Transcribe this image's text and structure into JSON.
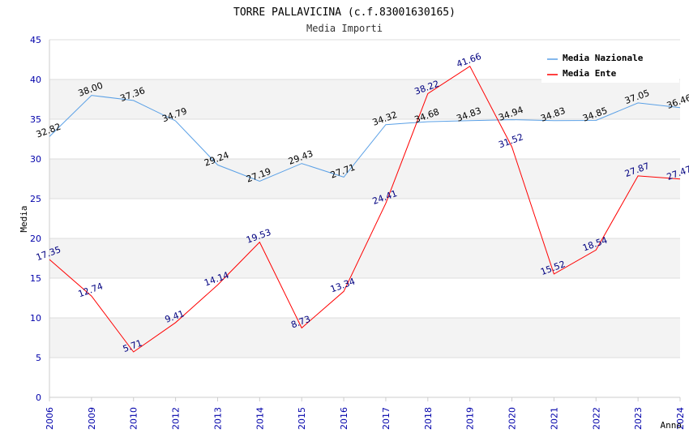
{
  "chart_data": {
    "type": "line",
    "title": "TORRE PALLAVICINA (c.f.83001630165)",
    "subtitle": "Media Importi",
    "ylabel": "Media",
    "xlabel": "Anno",
    "ylim": [
      0,
      45
    ],
    "yticks": [
      0,
      5,
      10,
      15,
      20,
      25,
      30,
      35,
      40,
      45
    ],
    "categories": [
      "2006",
      "2009",
      "2010",
      "2012",
      "2013",
      "2014",
      "2015",
      "2016",
      "2017",
      "2018",
      "2019",
      "2020",
      "2021",
      "2022",
      "2023",
      "2024"
    ],
    "series": [
      {
        "name": "Media Nazionale",
        "color": "#5aa0e6",
        "values": [
          32.82,
          38.0,
          37.36,
          34.79,
          29.24,
          27.19,
          29.43,
          27.71,
          34.32,
          34.68,
          34.83,
          34.94,
          34.83,
          34.85,
          37.05,
          36.46
        ],
        "labels": [
          "32.82",
          "38.00",
          "37.36",
          "34.79",
          "29.24",
          "27.19",
          "29.43",
          "27.71",
          "34.32",
          "34.68",
          "34.83",
          "34.94",
          "34.83",
          "34.85",
          "37.05",
          "36.46"
        ]
      },
      {
        "name": "Media Ente",
        "color": "#ff0000",
        "values": [
          17.35,
          12.74,
          5.71,
          9.41,
          14.14,
          19.53,
          8.73,
          13.34,
          24.41,
          38.22,
          41.66,
          31.52,
          15.52,
          18.54,
          27.87,
          27.47
        ],
        "labels": [
          "17.35",
          "12.74",
          "5.71",
          "9.41",
          "14.14",
          "19.53",
          "8.73",
          "13.34",
          "24.41",
          "38.22",
          "41.66",
          "31.52",
          "15.52",
          "18.54",
          "27.87",
          "27.47"
        ]
      }
    ],
    "legend_position": "top-right",
    "grid": true
  }
}
